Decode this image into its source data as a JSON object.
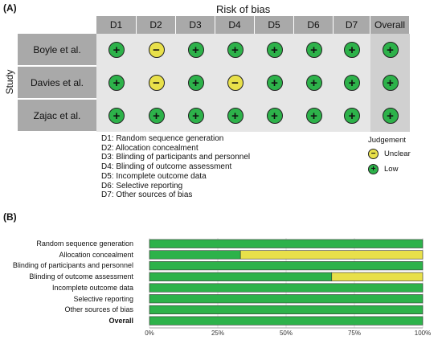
{
  "panel_a": {
    "label": "(A)",
    "title": "Risk of bias",
    "y_axis_label": "Study",
    "columns": [
      "D1",
      "D2",
      "D3",
      "D4",
      "D5",
      "D6",
      "D7",
      "Overall"
    ],
    "studies": [
      {
        "name": "Boyle et al.",
        "judgements": [
          "low",
          "unclear",
          "low",
          "low",
          "low",
          "low",
          "low",
          "low"
        ]
      },
      {
        "name": "Davies et al.",
        "judgements": [
          "low",
          "unclear",
          "low",
          "unclear",
          "low",
          "low",
          "low",
          "low"
        ]
      },
      {
        "name": "Zajac et al.",
        "judgements": [
          "low",
          "low",
          "low",
          "low",
          "low",
          "low",
          "low",
          "low"
        ]
      }
    ],
    "domain_legend": [
      "D1: Random sequence generation",
      "D2: Allocation concealment",
      "D3: Blinding of participants and personnel",
      "D4: Blinding of outcome assessment",
      "D5: Incomplete outcome data",
      "D6: Selective reporting",
      "D7: Other sources of bias"
    ],
    "judgement_legend": {
      "title": "Judgement",
      "unclear": "Unclear",
      "low": "Low"
    },
    "symbols": {
      "low": "+",
      "unclear": "−"
    }
  },
  "colors": {
    "low": "#2db24a",
    "unclear": "#e8e04a",
    "header": "#a9a9a9",
    "grid": "#e6e6e6",
    "overall_bg": "#d0d0d0"
  },
  "chart_data": {
    "type": "bar",
    "panel_label": "(B)",
    "orientation": "horizontal-stacked-percent",
    "categories": [
      "Random sequence generation",
      "Allocation concealment",
      "Blinding of participants and personnel",
      "Blinding of outcome assessment",
      "Incomplete outcome data",
      "Selective reporting",
      "Other sources of bias",
      "Overall"
    ],
    "series": [
      {
        "key": "low",
        "values": [
          100,
          33.3,
          100,
          66.7,
          100,
          100,
          100,
          100
        ]
      },
      {
        "key": "unclear",
        "values": [
          0,
          66.7,
          0,
          33.3,
          0,
          0,
          0,
          0
        ]
      }
    ],
    "xlim": [
      0,
      100
    ],
    "xticks": [
      "0%",
      "25%",
      "50%",
      "75%",
      "100%"
    ],
    "grid": true
  }
}
